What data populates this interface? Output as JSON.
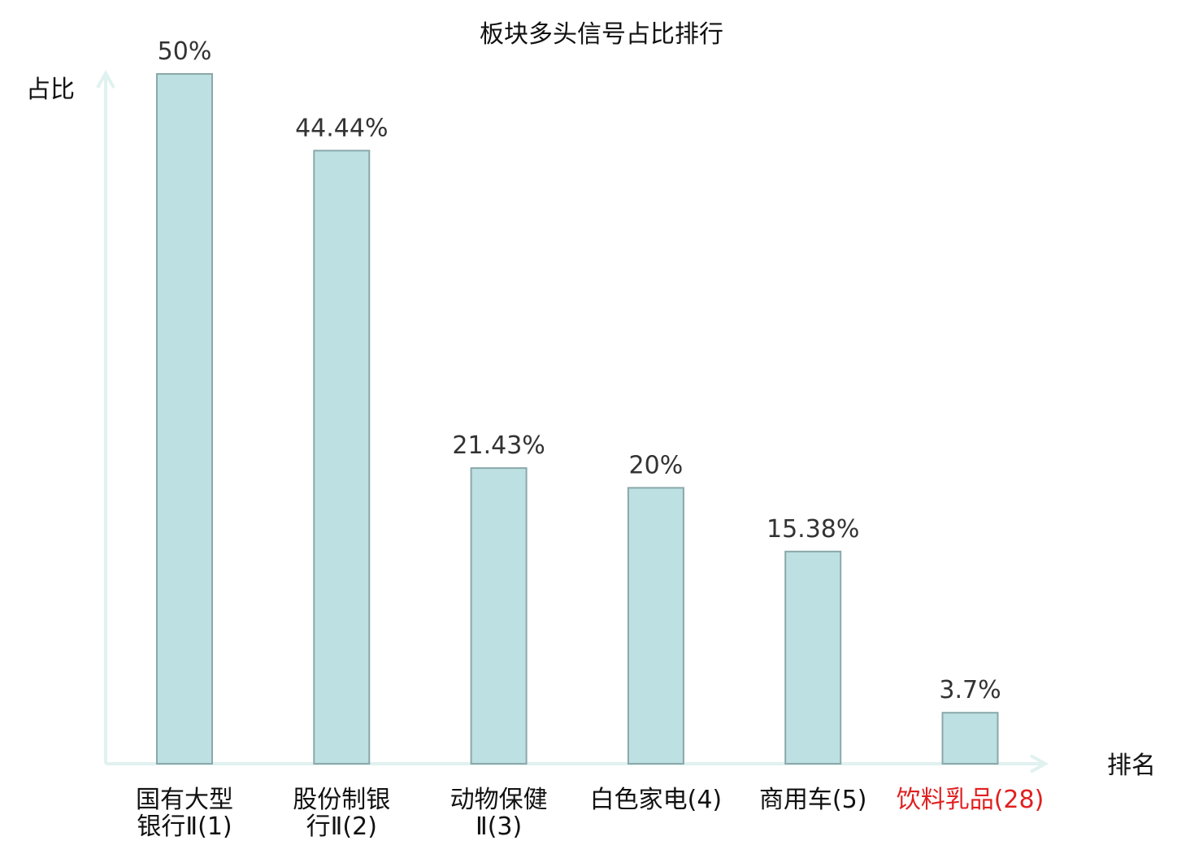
{
  "chart_data": {
    "type": "bar",
    "title": "板块多头信号占比排行",
    "ylabel": "占比",
    "xlabel": "排名",
    "ylim": [
      0,
      50
    ],
    "grid": false,
    "legend": "none",
    "categories": [
      [
        "国有大型",
        "银行Ⅱ(1)"
      ],
      [
        "股份制银",
        "行Ⅱ(2)"
      ],
      [
        "动物保健",
        "Ⅱ(3)"
      ],
      [
        "白色家电(4)"
      ],
      [
        "商用车(5)"
      ],
      [
        "饮料乳品(28)"
      ]
    ],
    "values": [
      50,
      44.44,
      21.43,
      20,
      15.38,
      3.7
    ],
    "value_labels": [
      "50%",
      "44.44%",
      "21.43%",
      "20%",
      "15.38%",
      "3.7%"
    ],
    "highlight_index": 5
  },
  "colors": {
    "bar_fill": "#bde0e2",
    "bar_stroke": "#8aa8aa",
    "axis": "#e0f2ef",
    "highlight_text": "#e02020"
  }
}
